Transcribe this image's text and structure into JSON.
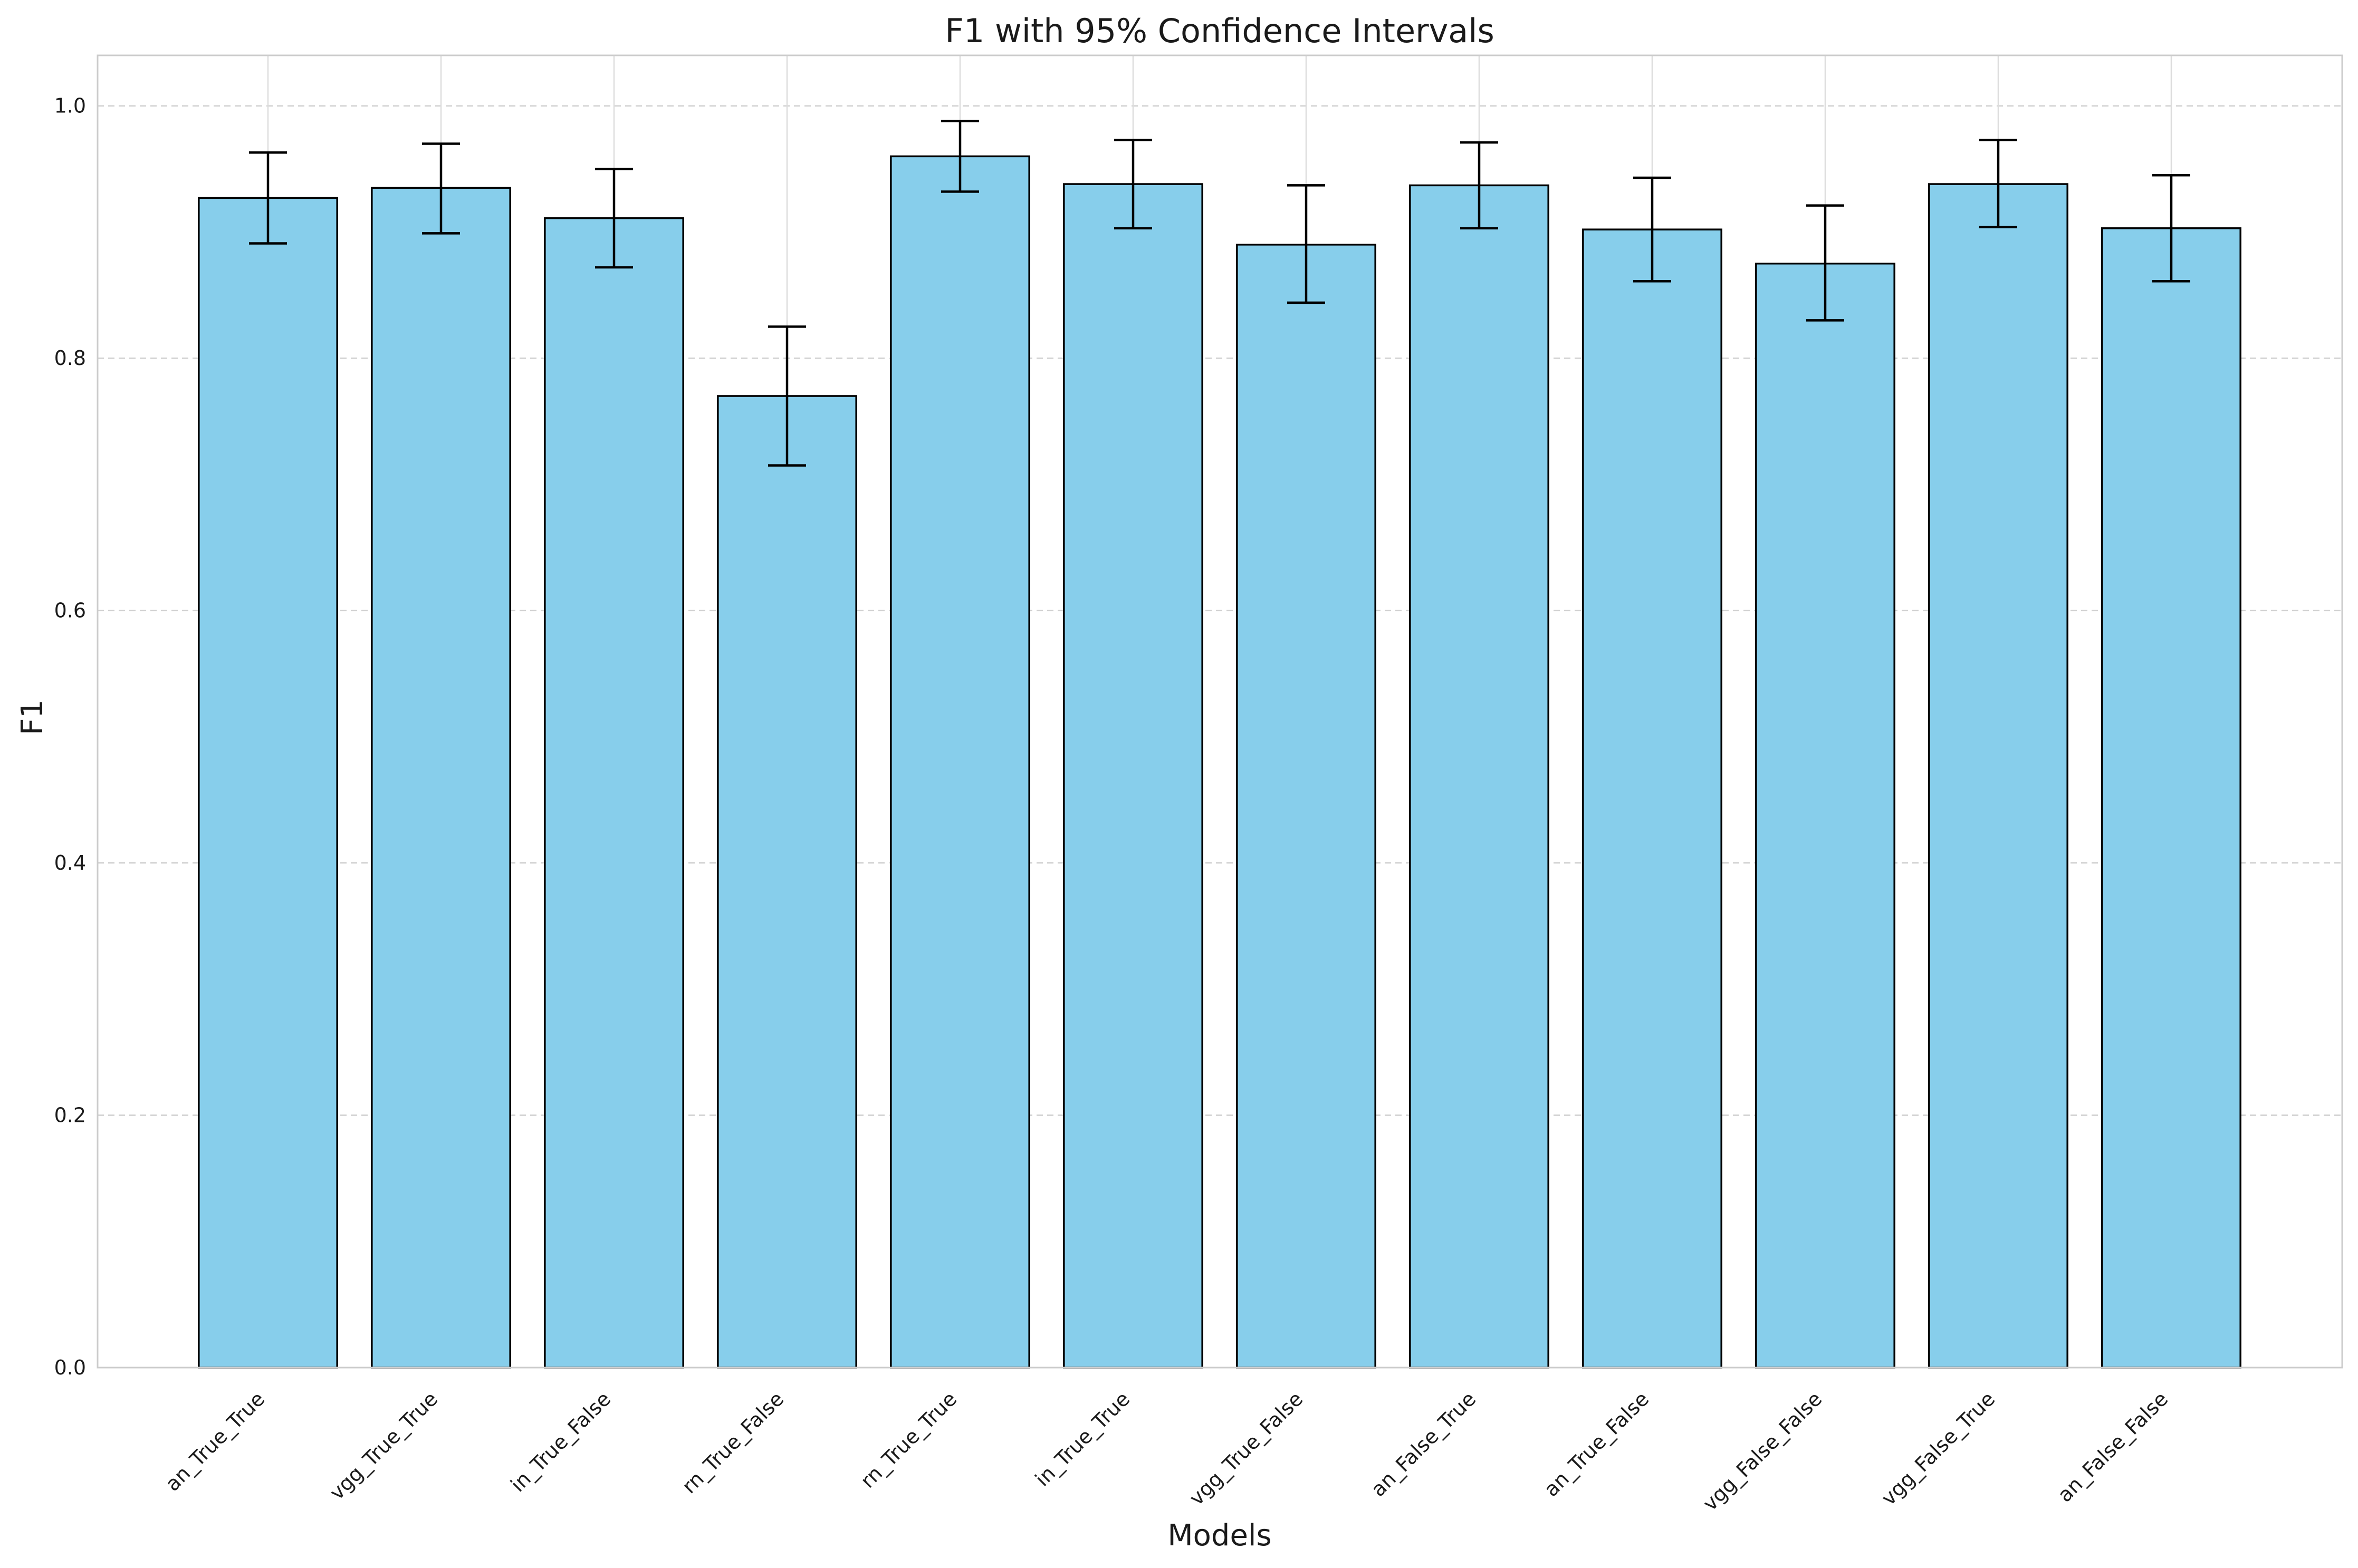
{
  "chart_data": {
    "type": "bar",
    "title": "F1 with 95% Confidence Intervals",
    "xlabel": "Models",
    "ylabel": "F1",
    "ylim": [
      0,
      1.04
    ],
    "yticks": [
      "0.0",
      "0.2",
      "0.4",
      "0.6",
      "0.8",
      "1.0"
    ],
    "grid": true,
    "categories": [
      "an_True_True",
      "vgg_True_True",
      "in_True_False",
      "rn_True_False",
      "rn_True_True",
      "in_True_True",
      "vgg_True_False",
      "an_False_True",
      "an_True_False",
      "vgg_False_False",
      "vgg_False_True",
      "an_False_False"
    ],
    "values": [
      0.927,
      0.935,
      0.911,
      0.77,
      0.96,
      0.938,
      0.89,
      0.937,
      0.902,
      0.875,
      0.938,
      0.903
    ],
    "ci_lower": [
      0.891,
      0.899,
      0.872,
      0.715,
      0.932,
      0.903,
      0.844,
      0.903,
      0.861,
      0.83,
      0.904,
      0.861
    ],
    "ci_upper": [
      0.963,
      0.97,
      0.95,
      0.825,
      0.988,
      0.973,
      0.937,
      0.971,
      0.943,
      0.921,
      0.973,
      0.945
    ],
    "bar_color": "#87CEEB",
    "edge_color": "#000000"
  }
}
